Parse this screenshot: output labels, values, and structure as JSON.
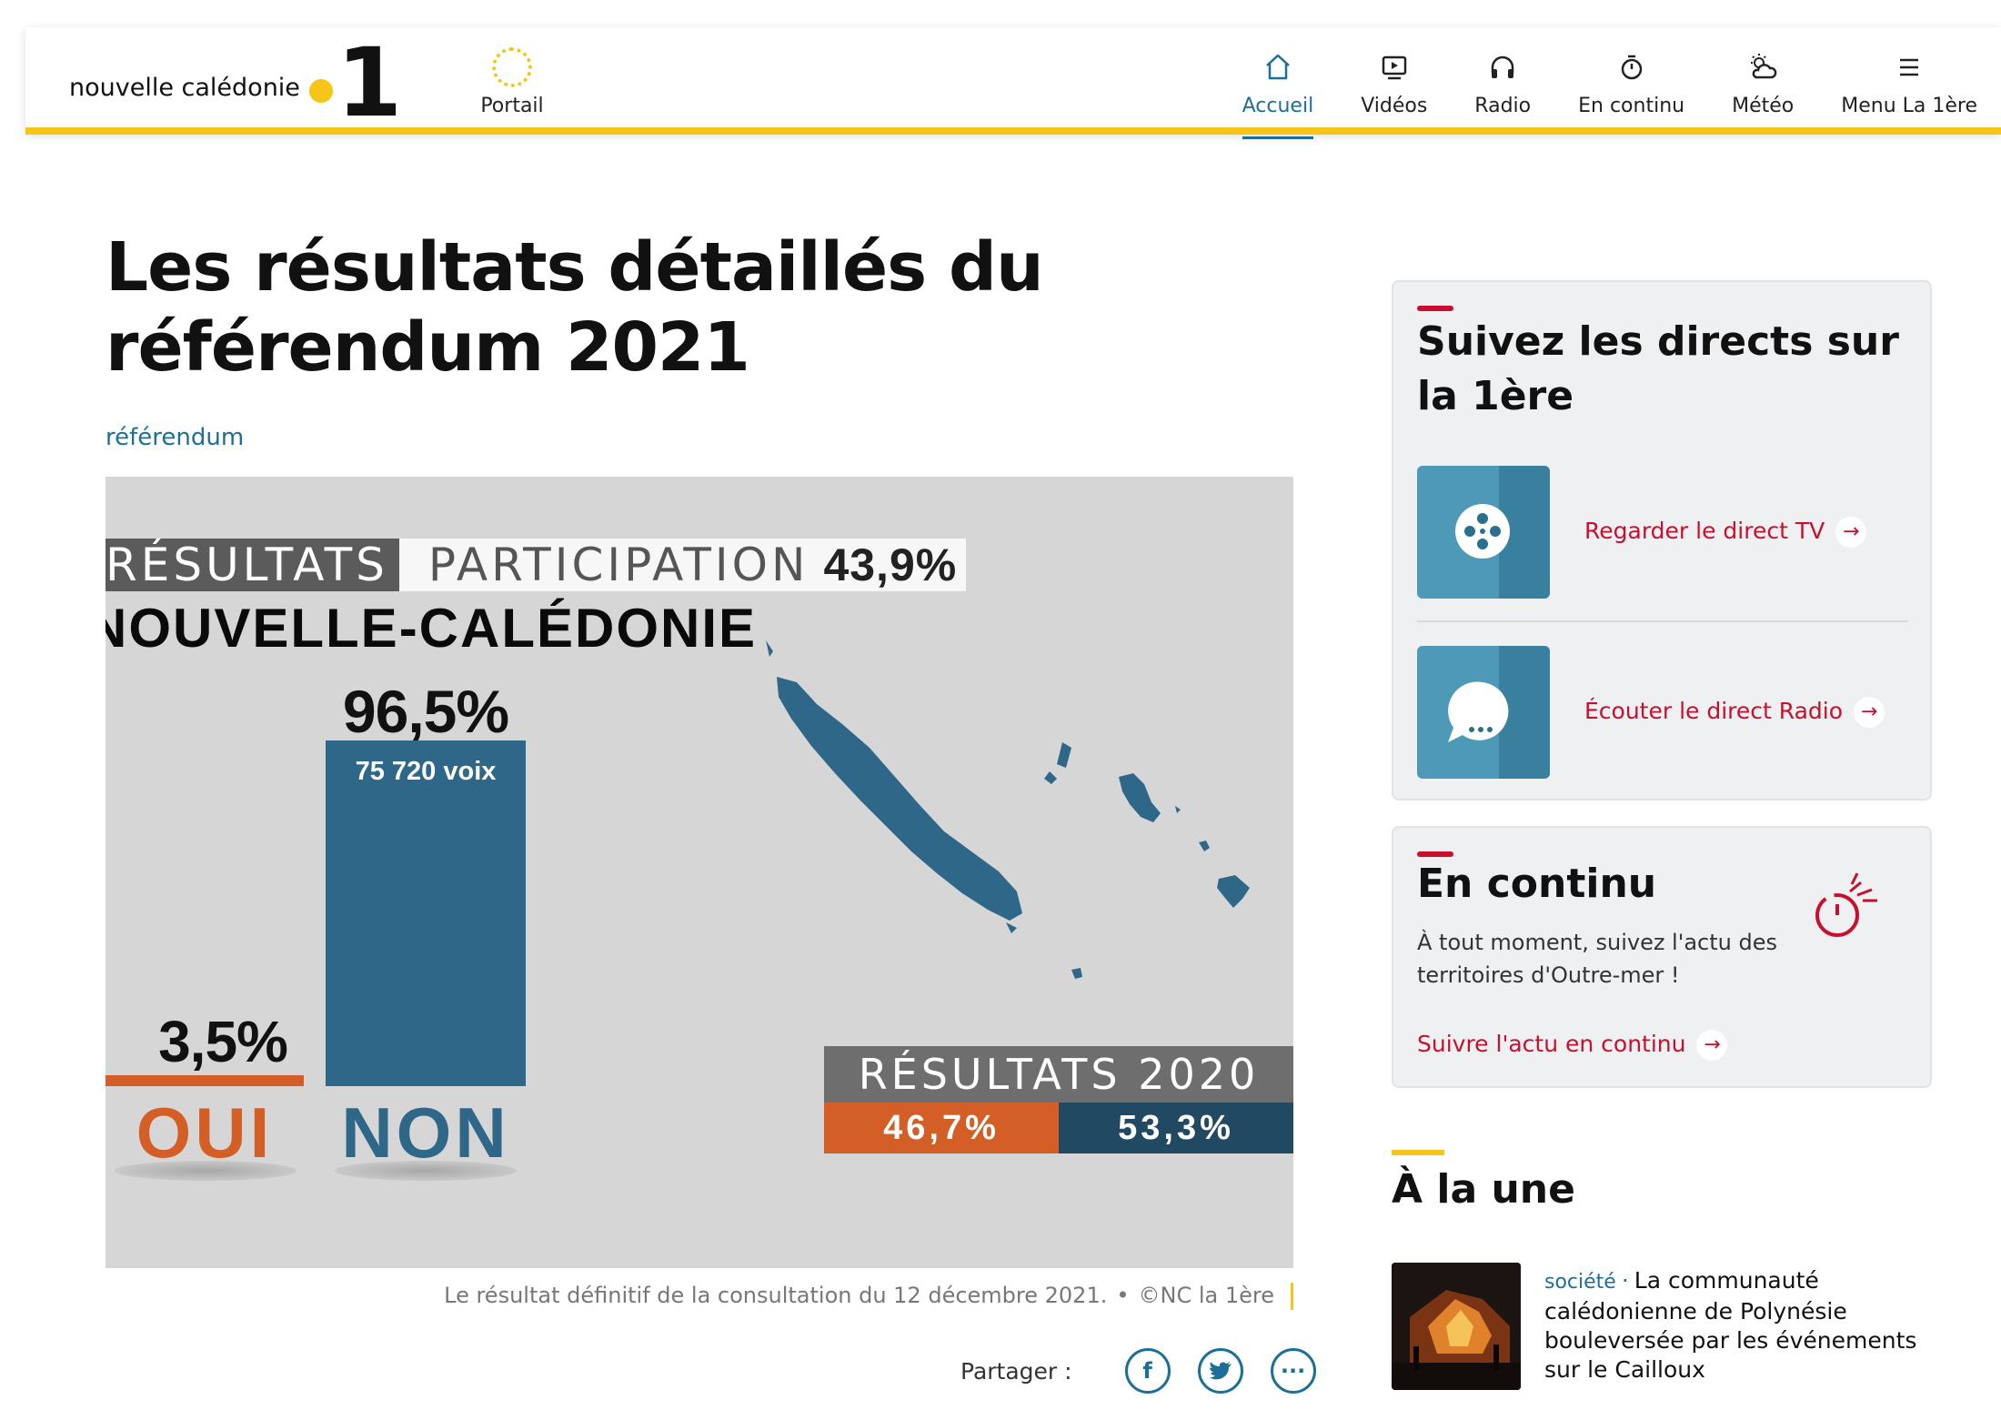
{
  "header": {
    "logo_text": "nouvelle calédonie",
    "logo_number": "1",
    "portail_label": "Portail",
    "nav": [
      {
        "label": "Accueil",
        "icon": "home-icon",
        "active": true
      },
      {
        "label": "Vidéos",
        "icon": "video-icon",
        "active": false
      },
      {
        "label": "Radio",
        "icon": "headphones-icon",
        "active": false
      },
      {
        "label": "En continu",
        "icon": "stopwatch-icon",
        "active": false
      },
      {
        "label": "Météo",
        "icon": "weather-icon",
        "active": false
      },
      {
        "label": "Menu La 1ère",
        "icon": "hamburger-menu-icon",
        "active": false
      }
    ]
  },
  "article": {
    "title": "Les résultats détaillés du référendum 2021",
    "tag": "référendum",
    "infographic": {
      "label_resultats": "RÉSULTATS",
      "label_participation": "PARTICIPATION",
      "participation_value": "43,9%",
      "region": "NOUVELLE-CALÉDONIE",
      "non_pct": "96,5%",
      "non_votes": "75 720 voix",
      "oui_pct": "3,5%",
      "oui_label": "OUI",
      "non_label": "NON",
      "results_2020_label": "RÉSULTATS 2020",
      "results_2020_oui": "46,7%",
      "results_2020_non": "53,3%",
      "colors": {
        "oui": "#d35f27",
        "non": "#2f6789",
        "non_2020": "#214a62",
        "background": "#d6d6d6"
      }
    },
    "caption": "Le résultat définitif de la consultation du 12 décembre 2021.",
    "caption_separator": "•",
    "credit": "©NC la 1ère",
    "share_label": "Partager :",
    "share_buttons": [
      {
        "icon": "facebook-icon",
        "glyph": "f"
      },
      {
        "icon": "twitter-icon",
        "glyph": "t"
      },
      {
        "icon": "more-options-icon",
        "glyph": "···"
      }
    ]
  },
  "sidebar": {
    "directs": {
      "title": "Suivez les directs sur la 1ère",
      "tv_link": "Regarder le direct TV",
      "radio_link": "Écouter le direct Radio"
    },
    "continu": {
      "title": "En continu",
      "description": "À tout moment, suivez l'actu des territoires d'Outre-mer !",
      "link": "Suivre l'actu en continu"
    },
    "a_la_une": {
      "title": "À la une",
      "category": "société",
      "separator": "·",
      "headline": "La communauté calédonienne de Polynésie bouleversée par les événements sur le Cailloux"
    }
  },
  "colors": {
    "accent_yellow": "#f5c518",
    "link_blue": "#1d6f9a",
    "accent_red": "#c8102e"
  }
}
